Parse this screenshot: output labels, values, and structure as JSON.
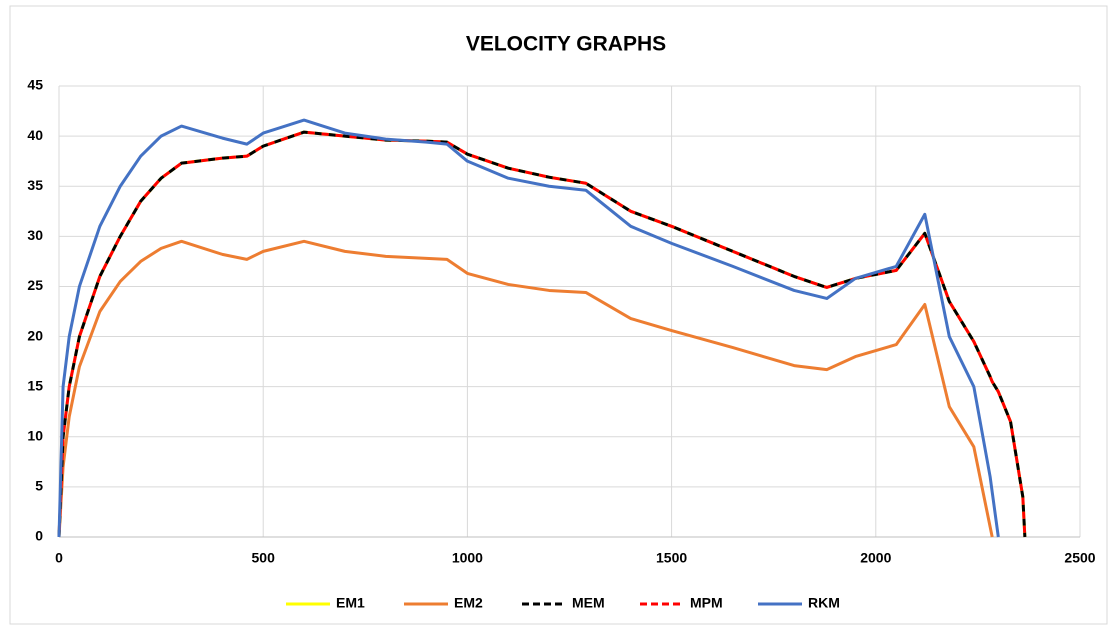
{
  "chart_data": {
    "type": "line",
    "title": "VELOCITY GRAPHS",
    "x": [
      0,
      10,
      25,
      50,
      100,
      150,
      200,
      250,
      300,
      400,
      460,
      500,
      600,
      700,
      800,
      900,
      950,
      1000,
      1100,
      1200,
      1290,
      1400,
      1500,
      1650,
      1800,
      1880,
      1950,
      2050,
      2120,
      2180,
      2240,
      2280,
      2285,
      2300,
      2330,
      2360,
      2365
    ],
    "series": [
      {
        "name": "EM1",
        "color": "#ffff00",
        "dashed": false,
        "values": [
          0,
          10,
          15,
          20,
          26,
          30,
          33.5,
          35.8,
          37.3,
          37.8,
          38,
          39,
          40.4,
          40,
          39.6,
          39.5,
          39.4,
          38.2,
          36.8,
          35.9,
          35.3,
          32.5,
          31,
          28.5,
          26,
          24.9,
          25.8,
          26.6,
          30.3,
          23.5,
          19.5,
          16,
          15.5,
          14.5,
          11.5,
          4,
          0
        ]
      },
      {
        "name": "EM2",
        "color": "#ed7d31",
        "dashed": false,
        "values": [
          0,
          7,
          12,
          17,
          22.5,
          25.5,
          27.5,
          28.8,
          29.5,
          28.2,
          27.7,
          28.5,
          29.5,
          28.5,
          28,
          27.8,
          27.7,
          26.3,
          25.2,
          24.6,
          24.4,
          21.8,
          20.6,
          18.9,
          17.1,
          16.7,
          18,
          19.2,
          23.2,
          13,
          9,
          1,
          0,
          null,
          null,
          null,
          null
        ]
      },
      {
        "name": "MEM",
        "color": "#000000",
        "dashed": true,
        "values": [
          0,
          10,
          15,
          20,
          26,
          30,
          33.5,
          35.8,
          37.3,
          37.8,
          38,
          39,
          40.4,
          40,
          39.6,
          39.5,
          39.4,
          38.2,
          36.8,
          35.9,
          35.3,
          32.5,
          31,
          28.5,
          26,
          24.9,
          25.8,
          26.6,
          30.3,
          23.5,
          19.5,
          16,
          15.5,
          14.5,
          11.5,
          4,
          0
        ]
      },
      {
        "name": "MPM",
        "color": "#ff0000",
        "dashed": true,
        "values": [
          0,
          10,
          15,
          20,
          26,
          30,
          33.5,
          35.8,
          37.3,
          37.8,
          38,
          39,
          40.4,
          40,
          39.6,
          39.5,
          39.4,
          38.2,
          36.8,
          35.9,
          35.3,
          32.5,
          31,
          28.5,
          26,
          24.9,
          25.8,
          26.6,
          30.3,
          23.5,
          19.5,
          16,
          15.5,
          14.5,
          11.5,
          4,
          0
        ]
      },
      {
        "name": "RKM",
        "color": "#4472c4",
        "dashed": false,
        "values": [
          0,
          15,
          20,
          25,
          31,
          35,
          38,
          40,
          41,
          39.8,
          39.2,
          40.3,
          41.6,
          40.3,
          39.7,
          39.4,
          39.2,
          37.5,
          35.8,
          35,
          34.6,
          31,
          29.3,
          27,
          24.6,
          23.8,
          25.8,
          27,
          32.2,
          20,
          15,
          6,
          4.5,
          0,
          null,
          null,
          null
        ]
      }
    ],
    "xlim": [
      0,
      2500
    ],
    "xticks": [
      0,
      500,
      1000,
      1500,
      2000,
      2500
    ],
    "ylim": [
      0,
      45
    ],
    "yticks": [
      0,
      5,
      10,
      15,
      20,
      25,
      30,
      35,
      40,
      45
    ],
    "grid": true,
    "legend": "bottom"
  }
}
